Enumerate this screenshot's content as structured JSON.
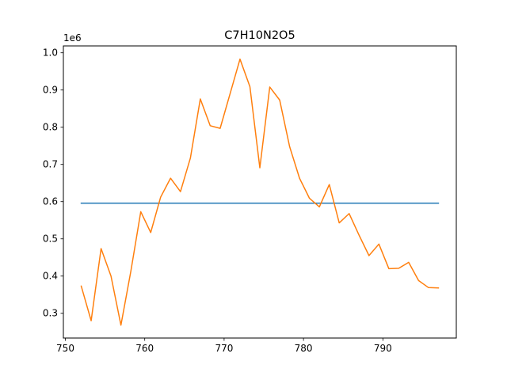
{
  "chart_data": {
    "type": "line",
    "title": "C7H10N2O5",
    "xlabel": "",
    "ylabel": "",
    "y_offset_label": "1e6",
    "xlim": [
      749.75,
      799.25
    ],
    "ylim": [
      0.2335,
      1.0185
    ],
    "x_ticks": [
      750,
      760,
      770,
      780,
      790
    ],
    "x_tick_labels": [
      "750",
      "760",
      "770",
      "780",
      "790"
    ],
    "y_ticks": [
      0.3,
      0.4,
      0.5,
      0.6,
      0.7,
      0.8,
      0.9,
      1.0
    ],
    "y_tick_labels": [
      "0.3",
      "0.4",
      "0.5",
      "0.6",
      "0.7",
      "0.8",
      "0.9",
      "1.0"
    ],
    "grid": false,
    "series": [
      {
        "color": "#1f77b4",
        "x": [
          752,
          797
        ],
        "y": [
          0.596,
          0.596
        ]
      },
      {
        "color": "#ff7f0e",
        "x": [
          752.0,
          753.25,
          754.5,
          755.75,
          757.0,
          758.25,
          759.5,
          760.75,
          762.0,
          763.25,
          764.5,
          765.75,
          767.0,
          768.25,
          769.5,
          770.75,
          772.0,
          773.25,
          774.5,
          775.75,
          777.0,
          778.25,
          779.5,
          780.75,
          782.0,
          783.25,
          784.5,
          785.75,
          787.0,
          788.25,
          789.5,
          790.75,
          792.0,
          793.25,
          794.5,
          795.75,
          797.0
        ],
        "y": [
          0.373,
          0.28,
          0.474,
          0.4,
          0.268,
          0.413,
          0.573,
          0.517,
          0.612,
          0.663,
          0.627,
          0.717,
          0.876,
          0.804,
          0.797,
          0.89,
          0.983,
          0.909,
          0.691,
          0.908,
          0.873,
          0.748,
          0.663,
          0.609,
          0.586,
          0.646,
          0.543,
          0.568,
          0.51,
          0.455,
          0.486,
          0.42,
          0.421,
          0.437,
          0.388,
          0.369,
          0.368
        ]
      }
    ]
  }
}
